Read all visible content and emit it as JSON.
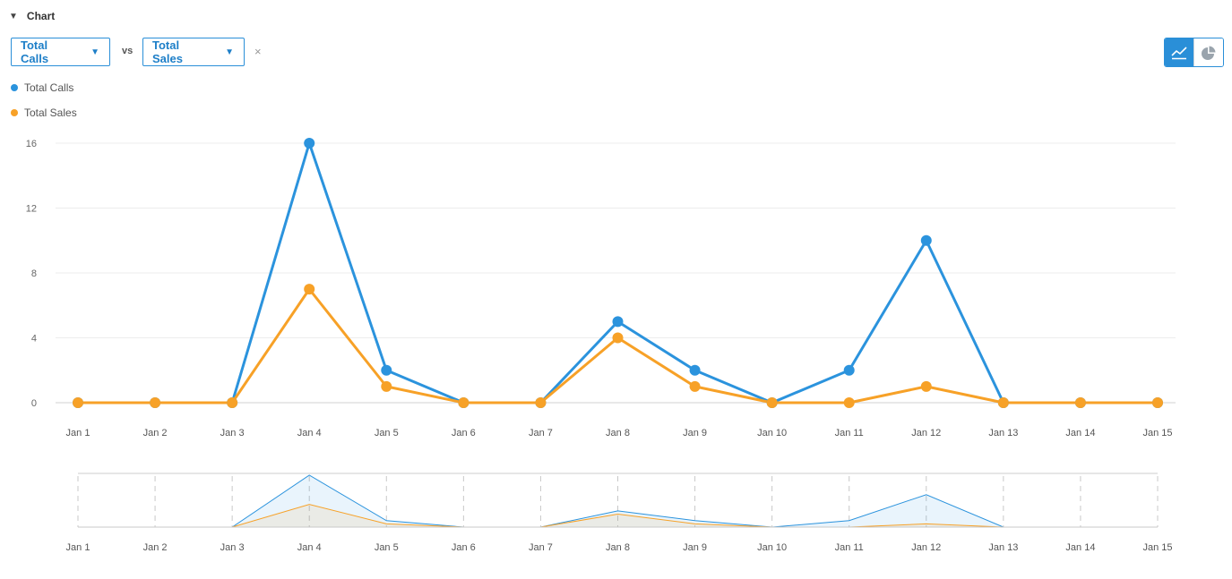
{
  "header": {
    "title": "Chart"
  },
  "controls": {
    "metric_a": "Total Calls",
    "vs_label": "vs",
    "metric_b": "Total Sales",
    "clear_symbol": "×"
  },
  "colors": {
    "calls": "#2b93dd",
    "sales": "#f7a127",
    "accent": "#2a8fd8"
  },
  "icons": {
    "line_view": "line-chart-icon",
    "pie_view": "pie-chart-icon",
    "caret": "caret-down-icon"
  },
  "chart_data": {
    "type": "line",
    "categories": [
      "Jan 1",
      "Jan 2",
      "Jan 3",
      "Jan 4",
      "Jan 5",
      "Jan 6",
      "Jan 7",
      "Jan 8",
      "Jan 9",
      "Jan 10",
      "Jan 11",
      "Jan 12",
      "Jan 13",
      "Jan 14",
      "Jan 15"
    ],
    "series": [
      {
        "name": "Total Calls",
        "values": [
          0,
          0,
          0,
          16,
          2,
          0,
          0,
          5,
          2,
          0,
          2,
          10,
          0,
          0,
          0
        ]
      },
      {
        "name": "Total Sales",
        "values": [
          0,
          0,
          0,
          7,
          1,
          0,
          0,
          4,
          1,
          0,
          0,
          1,
          0,
          0,
          0
        ]
      }
    ],
    "ylim": [
      0,
      16
    ],
    "yticks": [
      0,
      4,
      8,
      12,
      16
    ],
    "legend": "top-left",
    "grid": true,
    "navigator": true
  }
}
